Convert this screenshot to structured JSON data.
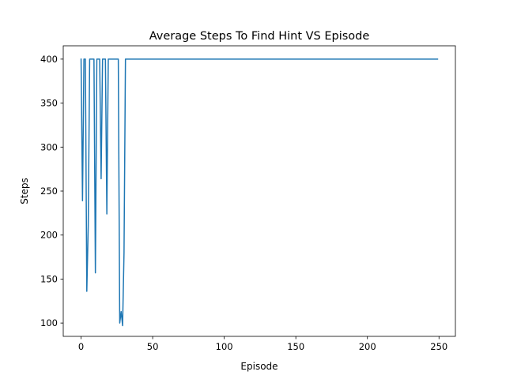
{
  "chart_data": {
    "type": "line",
    "title": "Average Steps To Find Hint VS Episode",
    "xlabel": "Episode",
    "ylabel": "Steps",
    "xlim": [
      -12.45,
      261.45
    ],
    "ylim": [
      84.85,
      415.15
    ],
    "xticks": [
      0,
      50,
      100,
      150,
      200,
      250
    ],
    "yticks": [
      100,
      150,
      200,
      250,
      300,
      350,
      400
    ],
    "grid": false,
    "legend": "none",
    "series": [
      {
        "color": "#1f77b4",
        "points": [
          [
            0,
            400
          ],
          [
            1,
            239
          ],
          [
            2,
            400
          ],
          [
            3,
            400
          ],
          [
            4,
            136
          ],
          [
            5,
            210
          ],
          [
            6,
            400
          ],
          [
            7,
            400
          ],
          [
            8,
            400
          ],
          [
            9,
            400
          ],
          [
            10,
            157
          ],
          [
            11,
            400
          ],
          [
            12,
            400
          ],
          [
            13,
            400
          ],
          [
            14,
            264
          ],
          [
            15,
            400
          ],
          [
            16,
            400
          ],
          [
            17,
            400
          ],
          [
            18,
            224
          ],
          [
            19,
            400
          ],
          [
            20,
            400
          ],
          [
            21,
            400
          ],
          [
            22,
            400
          ],
          [
            23,
            400
          ],
          [
            24,
            400
          ],
          [
            25,
            400
          ],
          [
            26,
            400
          ],
          [
            27,
            100
          ],
          [
            28,
            113
          ],
          [
            29,
            97
          ],
          [
            30,
            180
          ],
          [
            31,
            400
          ],
          [
            249,
            400
          ]
        ]
      }
    ]
  }
}
